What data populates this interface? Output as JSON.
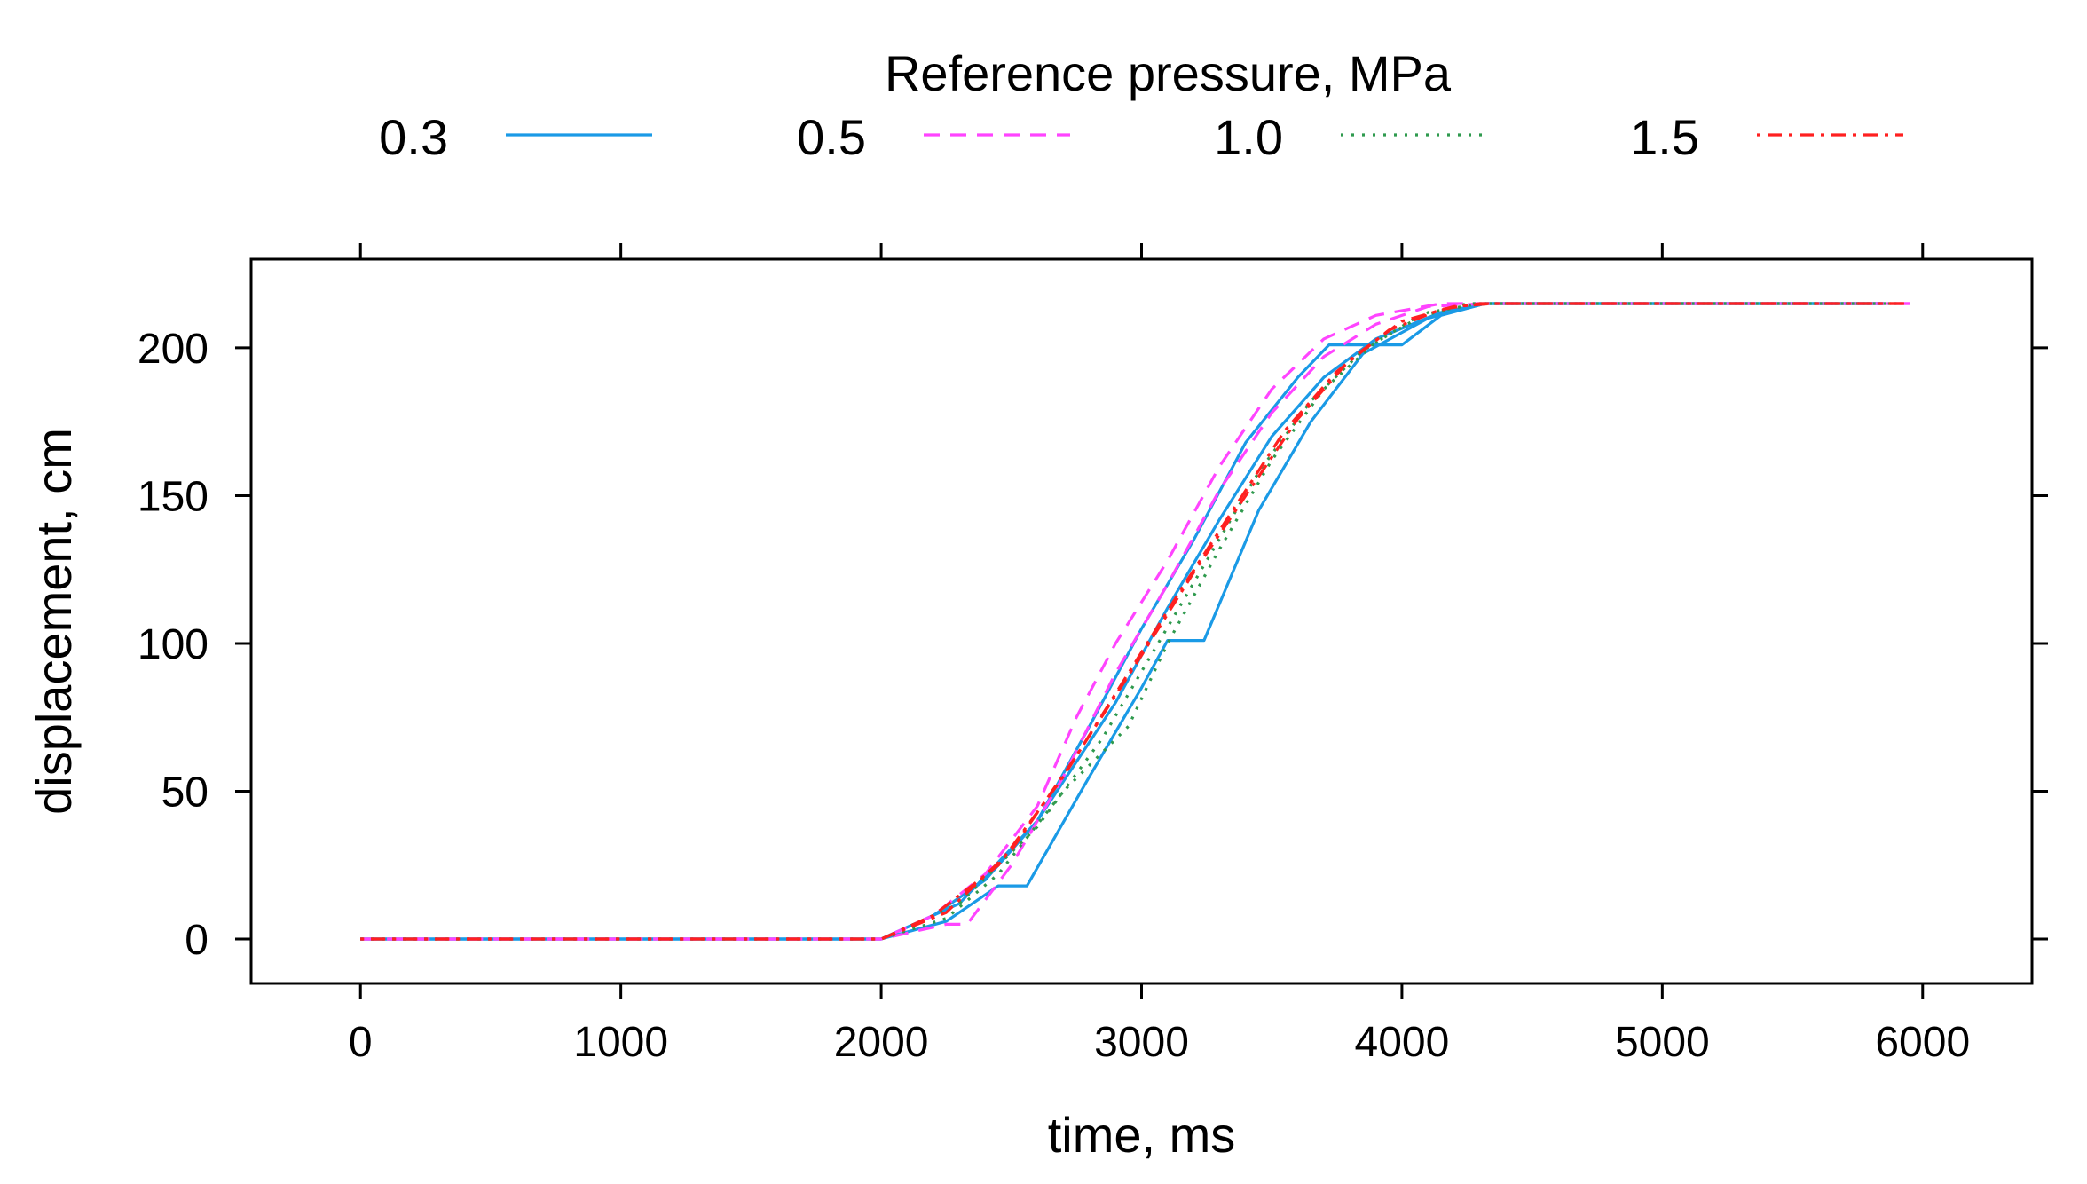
{
  "chart_data": {
    "type": "line",
    "xlabel": "time, ms",
    "ylabel": "displacement, cm",
    "xlim": [
      -420,
      6420
    ],
    "ylim": [
      -15,
      230
    ],
    "x_ticks": [
      0,
      1000,
      2000,
      3000,
      4000,
      5000,
      6000
    ],
    "y_ticks": [
      0,
      50,
      100,
      150,
      200
    ],
    "legend": {
      "title": "Reference pressure, MPa",
      "placement": "top",
      "entries": [
        {
          "label": "0.3",
          "color": "#1a9ae6",
          "dash": "solid"
        },
        {
          "label": "0.5",
          "color": "#ff44ff",
          "dash": "dashed"
        },
        {
          "label": "1.0",
          "color": "#2f9a4e",
          "dash": "dotted"
        },
        {
          "label": "1.5",
          "color": "#ff2020",
          "dash": "dashdot"
        }
      ]
    },
    "series": [
      {
        "name": "0.3",
        "color": "#1a9ae6",
        "dash": "solid",
        "points": [
          [
            0,
            0
          ],
          [
            2000,
            0
          ],
          [
            2200,
            8
          ],
          [
            2400,
            20
          ],
          [
            2600,
            40
          ],
          [
            2800,
            72
          ],
          [
            3000,
            105
          ],
          [
            3200,
            135
          ],
          [
            3400,
            168
          ],
          [
            3600,
            190
          ],
          [
            3720,
            201
          ],
          [
            4000,
            201
          ],
          [
            4150,
            211
          ],
          [
            4320,
            215
          ],
          [
            5850,
            215
          ]
        ]
      },
      {
        "name": "0.3",
        "color": "#1a9ae6",
        "dash": "solid",
        "points": [
          [
            0,
            0
          ],
          [
            2000,
            0
          ],
          [
            2250,
            6
          ],
          [
            2450,
            18
          ],
          [
            2560,
            18
          ],
          [
            2800,
            55
          ],
          [
            3000,
            85
          ],
          [
            3100,
            101
          ],
          [
            3240,
            101
          ],
          [
            3450,
            145
          ],
          [
            3650,
            175
          ],
          [
            3850,
            198
          ],
          [
            4100,
            210
          ],
          [
            4320,
            215
          ],
          [
            5850,
            215
          ]
        ]
      },
      {
        "name": "0.3",
        "color": "#1a9ae6",
        "dash": "solid",
        "points": [
          [
            0,
            0
          ],
          [
            2000,
            0
          ],
          [
            2300,
            12
          ],
          [
            2600,
            40
          ],
          [
            2900,
            80
          ],
          [
            3100,
            112
          ],
          [
            3300,
            142
          ],
          [
            3500,
            170
          ],
          [
            3700,
            190
          ],
          [
            3900,
            203
          ],
          [
            4150,
            212
          ],
          [
            4320,
            215
          ],
          [
            5850,
            215
          ]
        ]
      },
      {
        "name": "0.5",
        "color": "#ff44ff",
        "dash": "dashed",
        "points": [
          [
            0,
            0
          ],
          [
            2000,
            0
          ],
          [
            2200,
            8
          ],
          [
            2400,
            22
          ],
          [
            2600,
            45
          ],
          [
            2750,
            75
          ],
          [
            2900,
            100
          ],
          [
            3100,
            128
          ],
          [
            3300,
            160
          ],
          [
            3500,
            186
          ],
          [
            3700,
            203
          ],
          [
            3900,
            211
          ],
          [
            4150,
            215
          ],
          [
            5950,
            215
          ]
        ]
      },
      {
        "name": "0.5",
        "color": "#ff44ff",
        "dash": "dashed",
        "points": [
          [
            0,
            0
          ],
          [
            2000,
            0
          ],
          [
            2250,
            5
          ],
          [
            2330,
            5
          ],
          [
            2500,
            25
          ],
          [
            2700,
            55
          ],
          [
            2900,
            90
          ],
          [
            3100,
            120
          ],
          [
            3300,
            152
          ],
          [
            3500,
            178
          ],
          [
            3700,
            197
          ],
          [
            3900,
            208
          ],
          [
            4100,
            214
          ],
          [
            4320,
            215
          ],
          [
            5950,
            215
          ]
        ]
      },
      {
        "name": "1.0",
        "color": "#2f9a4e",
        "dash": "dotted",
        "points": [
          [
            0,
            0
          ],
          [
            2000,
            0
          ],
          [
            2250,
            7
          ],
          [
            2450,
            22
          ],
          [
            2700,
            50
          ],
          [
            2950,
            72
          ],
          [
            3100,
            100
          ],
          [
            3300,
            132
          ],
          [
            3500,
            162
          ],
          [
            3700,
            186
          ],
          [
            3900,
            202
          ],
          [
            4100,
            212
          ],
          [
            4300,
            215
          ],
          [
            5900,
            215
          ]
        ]
      },
      {
        "name": "1.0",
        "color": "#2f9a4e",
        "dash": "dotted",
        "points": [
          [
            0,
            0
          ],
          [
            2000,
            0
          ],
          [
            2300,
            12
          ],
          [
            2600,
            38
          ],
          [
            2850,
            68
          ],
          [
            3050,
            98
          ],
          [
            3250,
            128
          ],
          [
            3450,
            158
          ],
          [
            3650,
            182
          ],
          [
            3850,
            199
          ],
          [
            4050,
            210
          ],
          [
            4250,
            215
          ],
          [
            5900,
            215
          ]
        ]
      },
      {
        "name": "1.5",
        "color": "#ff2020",
        "dash": "dashdot",
        "points": [
          [
            0,
            0
          ],
          [
            2000,
            0
          ],
          [
            2200,
            8
          ],
          [
            2450,
            25
          ],
          [
            2700,
            55
          ],
          [
            2950,
            90
          ],
          [
            3150,
            118
          ],
          [
            3350,
            145
          ],
          [
            3550,
            172
          ],
          [
            3750,
            192
          ],
          [
            3950,
            206
          ],
          [
            4150,
            213
          ],
          [
            4300,
            215
          ],
          [
            5950,
            215
          ]
        ]
      },
      {
        "name": "1.5",
        "color": "#ff2020",
        "dash": "dashdot",
        "points": [
          [
            0,
            0
          ],
          [
            2000,
            0
          ],
          [
            2250,
            9
          ],
          [
            2500,
            30
          ],
          [
            2750,
            62
          ],
          [
            3000,
            96
          ],
          [
            3200,
            124
          ],
          [
            3400,
            150
          ],
          [
            3600,
            176
          ],
          [
            3800,
            196
          ],
          [
            4000,
            209
          ],
          [
            4200,
            214
          ],
          [
            4350,
            215
          ],
          [
            5950,
            215
          ]
        ]
      }
    ]
  }
}
